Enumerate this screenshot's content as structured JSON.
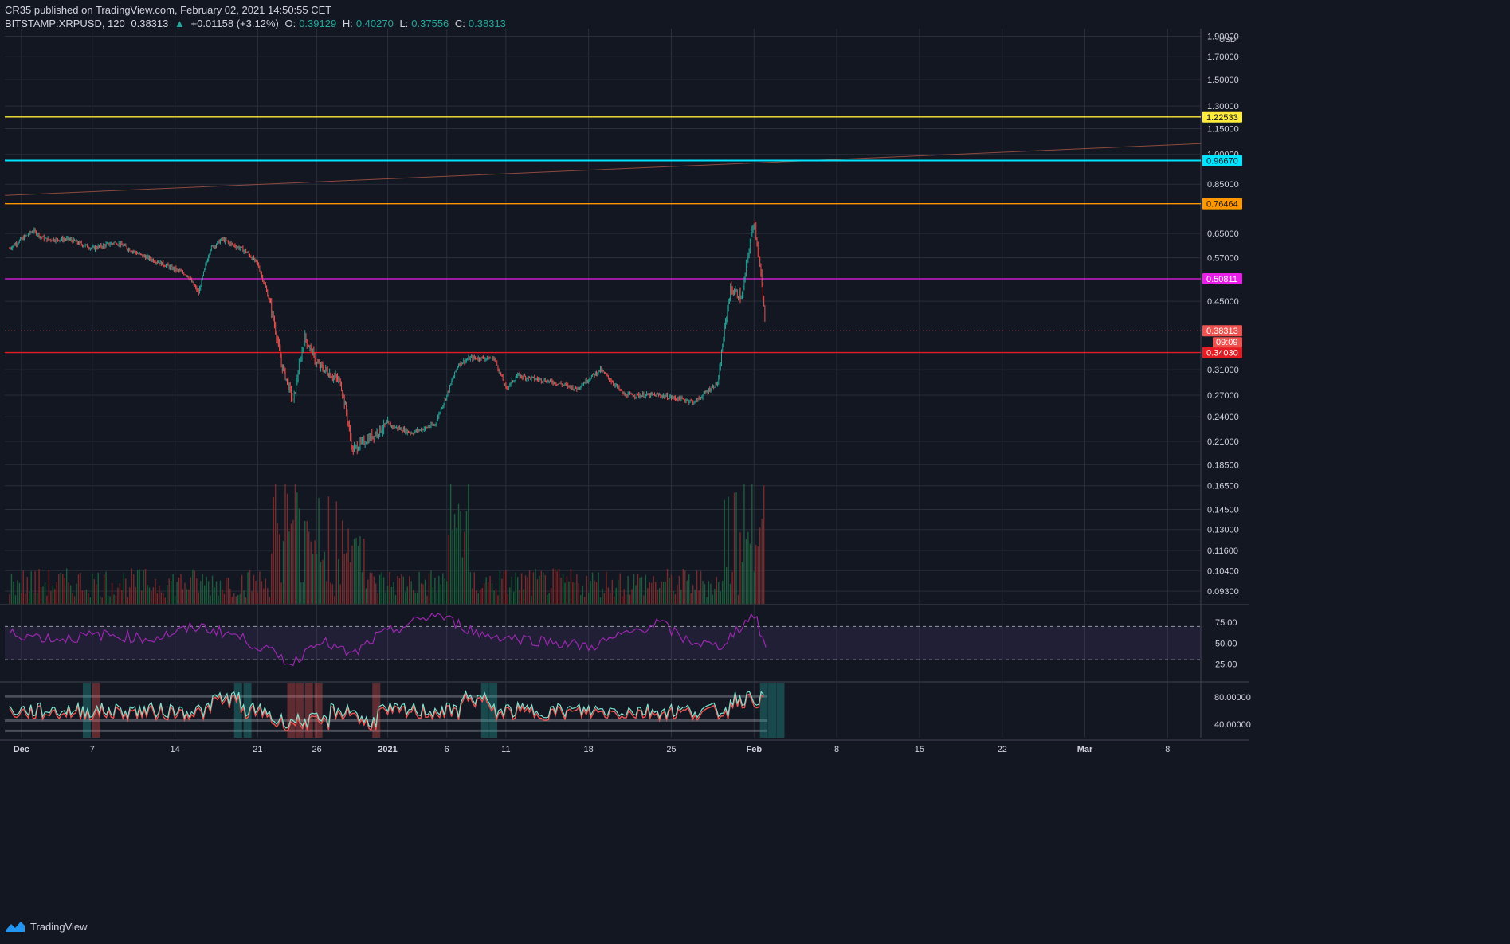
{
  "header": {
    "published": "CR35 published on TradingView.com, February 02, 2021 14:50:55 CET",
    "symbol": "BITSTAMP:XRPUSD, 120",
    "last": "0.38313",
    "change": "+0.01158 (+3.12%)",
    "o_label": "O:",
    "o_value": "0.39129",
    "h_label": "H:",
    "h_value": "0.40270",
    "l_label": "L:",
    "l_value": "0.37556",
    "c_label": "C:",
    "c_value": "0.38313"
  },
  "footer": {
    "brand": "TradingView"
  },
  "colors": {
    "background": "#131722",
    "up": "#26a69a",
    "down": "#ef5350",
    "rsi": "#9c27b0",
    "grid": "#2a2e39",
    "axis_text": "#d1d4dc"
  },
  "chart_data": {
    "type": "candlestick",
    "symbol": "BITSTAMP:XRPUSD",
    "interval": "120",
    "currency": "USD",
    "log_scale": true,
    "price_ticks": [
      "1.90000",
      "1.70000",
      "1.50000",
      "1.30000",
      "1.15000",
      "1.00000",
      "0.85000",
      "0.65000",
      "0.57000",
      "0.45000",
      "0.31000",
      "0.27000",
      "0.24000",
      "0.21000",
      "0.18500",
      "0.16500",
      "0.14500",
      "0.13000",
      "0.11600",
      "0.10400",
      "0.09300"
    ],
    "x_ticks": [
      "Dec",
      "7",
      "14",
      "21",
      "26",
      "2021",
      "6",
      "11",
      "18",
      "25",
      "Feb",
      "8",
      "15",
      "22",
      "Mar",
      "8"
    ],
    "horizontal_levels": [
      {
        "price": 1.22533,
        "label": "1.22533",
        "color": "#ffeb3b"
      },
      {
        "price": 0.9667,
        "label": "0.96670",
        "color": "#00e5ff"
      },
      {
        "price": 0.76464,
        "label": "0.76464",
        "color": "#ff9800"
      },
      {
        "price": 0.50811,
        "label": "0.50811",
        "color": "#e91ee8"
      },
      {
        "price": 0.3403,
        "label": "0.34030",
        "color": "#e51c23"
      }
    ],
    "last_price": {
      "value": 0.38313,
      "label": "0.38313",
      "countdown": "09:09"
    },
    "trendline": {
      "from": {
        "date": "Nov 30",
        "price": 0.8
      },
      "to": {
        "date": "Mar 8",
        "price": 1.06
      }
    },
    "price_path": [
      [
        "Nov 30",
        0.6
      ],
      [
        "Dec 2",
        0.66
      ],
      [
        "Dec 3",
        0.63
      ],
      [
        "Dec 5",
        0.63
      ],
      [
        "Dec 7",
        0.6
      ],
      [
        "Dec 9",
        0.62
      ],
      [
        "Dec 11",
        0.58
      ],
      [
        "Dec 13",
        0.55
      ],
      [
        "Dec 15",
        0.52
      ],
      [
        "Dec 16",
        0.47
      ],
      [
        "Dec 17",
        0.6
      ],
      [
        "Dec 18",
        0.63
      ],
      [
        "Dec 20",
        0.59
      ],
      [
        "Dec 21",
        0.55
      ],
      [
        "Dec 22",
        0.45
      ],
      [
        "Dec 23",
        0.32
      ],
      [
        "Dec 24",
        0.26
      ],
      [
        "Dec 25",
        0.37
      ],
      [
        "Dec 26",
        0.32
      ],
      [
        "Dec 28",
        0.29
      ],
      [
        "Dec 29",
        0.2
      ],
      [
        "Dec 30",
        0.21
      ],
      [
        "Jan 1",
        0.23
      ],
      [
        "Jan 3",
        0.22
      ],
      [
        "Jan 5",
        0.23
      ],
      [
        "Jan 6",
        0.27
      ],
      [
        "Jan 7",
        0.32
      ],
      [
        "Jan 8",
        0.33
      ],
      [
        "Jan 10",
        0.33
      ],
      [
        "Jan 11",
        0.28
      ],
      [
        "Jan 12",
        0.3
      ],
      [
        "Jan 15",
        0.29
      ],
      [
        "Jan 17",
        0.28
      ],
      [
        "Jan 19",
        0.31
      ],
      [
        "Jan 21",
        0.27
      ],
      [
        "Jan 24",
        0.27
      ],
      [
        "Jan 27",
        0.26
      ],
      [
        "Jan 29",
        0.29
      ],
      [
        "Jan 30",
        0.48
      ],
      [
        "Jan 31",
        0.46
      ],
      [
        "Feb 1",
        0.7
      ],
      [
        "Feb 2",
        0.38
      ]
    ],
    "rsi": {
      "ticks": [
        "75.00",
        "50.00",
        "25.00"
      ],
      "overbought": 70,
      "oversold": 30,
      "path": [
        [
          0,
          62
        ],
        [
          4,
          55
        ],
        [
          8,
          60
        ],
        [
          12,
          55
        ],
        [
          16,
          70
        ],
        [
          19,
          60
        ],
        [
          22,
          40
        ],
        [
          24,
          25
        ],
        [
          26,
          55
        ],
        [
          29,
          35
        ],
        [
          31,
          57
        ],
        [
          36,
          85
        ],
        [
          40,
          60
        ],
        [
          47,
          50
        ],
        [
          49,
          45
        ],
        [
          55,
          75
        ],
        [
          57,
          55
        ],
        [
          60,
          45
        ],
        [
          63,
          85
        ],
        [
          64,
          45
        ]
      ]
    },
    "osc": {
      "ticks": [
        "80.00000",
        "40.00000"
      ]
    }
  }
}
